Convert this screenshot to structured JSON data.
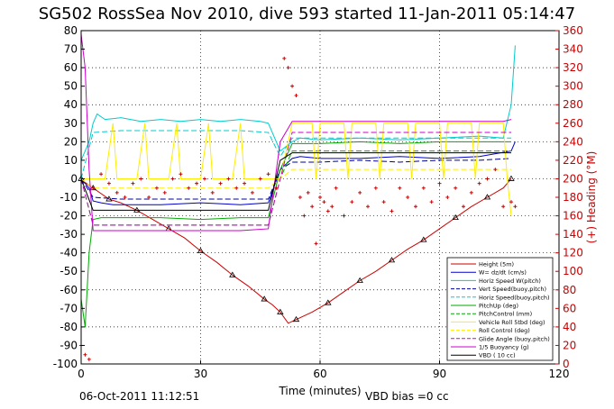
{
  "chart_data": {
    "type": "line",
    "title": "SG502 RossSea Nov 2010, dive 593 started 11-Jan-2011 05:14:47",
    "xlabel": "Time (minutes)",
    "y2label": "(+) Heading (°M)",
    "footer_left": "06-Oct-2011 11:12:51",
    "footer_right": "VBD bias =0 cc",
    "xlim": [
      0,
      120
    ],
    "ylim": [
      -100,
      80
    ],
    "y2lim": [
      0,
      360
    ],
    "x_ticks": [
      0,
      30,
      60,
      90,
      120
    ],
    "y_ticks": [
      -100,
      -90,
      -80,
      -70,
      -60,
      -50,
      -40,
      -30,
      -20,
      -10,
      0,
      10,
      20,
      30,
      40,
      50,
      60,
      70,
      80
    ],
    "y2_ticks": [
      0,
      20,
      40,
      60,
      80,
      100,
      120,
      140,
      160,
      180,
      200,
      220,
      240,
      260,
      280,
      300,
      320,
      340,
      360
    ],
    "x_tick_labels": [
      "0",
      "30",
      "60",
      "90",
      "120"
    ],
    "y_tick_labels": [
      "-100",
      "-90",
      "-80",
      "-70",
      "-60",
      "-50",
      "-40",
      "-30",
      "-20",
      "-10",
      "0",
      "10",
      "20",
      "30",
      "40",
      "50",
      "60",
      "70",
      "80"
    ],
    "y2_tick_labels": [
      "0",
      "20",
      "40",
      "60",
      "80",
      "100",
      "120",
      "140",
      "160",
      "180",
      "200",
      "220",
      "240",
      "260",
      "280",
      "300",
      "320",
      "340",
      "360"
    ],
    "grid": true,
    "legend_position": "bottom-right",
    "legend_labels": [
      "Height (5m)",
      "W= dz/dt (cm/s)",
      "Horiz Speed W(pitch)",
      "Vert Speed(buoy,pitch)",
      "Horiz Speed(buoy,pitch)",
      "PitchUp (deg)",
      "PitchControl (mm)",
      "Vehicle Roll 5tbd (deg)",
      "Roll Control (deg)",
      "Glide Angle (buoy,pitch)",
      "1/5 Buoyancy (g)",
      "VBD ( 10 cc)"
    ],
    "series": [
      {
        "name": "Height (5m)",
        "color": "#cc0000",
        "style": "solid-triangles",
        "x": [
          0,
          1,
          3,
          5,
          7,
          10,
          14,
          18,
          22,
          26,
          30,
          34,
          38,
          42,
          46,
          48,
          50,
          52,
          54,
          58,
          62,
          66,
          70,
          74,
          78,
          82,
          86,
          90,
          94,
          98,
          102,
          106,
          108
        ],
        "y": [
          0,
          -2,
          -5,
          -8,
          -11,
          -13,
          -17,
          -22,
          -27,
          -32,
          -39,
          -45,
          -52,
          -58,
          -65,
          -68,
          -72,
          -78,
          -76,
          -72,
          -67,
          -61,
          -55,
          -50,
          -44,
          -38,
          -33,
          -27,
          -21,
          -15,
          -10,
          -5,
          0
        ]
      },
      {
        "name": "W= dz/dt (cm/s)",
        "color": "#0000cc",
        "style": "solid",
        "x": [
          0,
          2,
          3,
          5,
          8,
          12,
          20,
          30,
          40,
          47,
          50,
          53,
          55,
          60,
          70,
          80,
          90,
          100,
          108,
          109
        ],
        "y": [
          0,
          -5,
          -12,
          -13,
          -14,
          -14,
          -14,
          -13,
          -14,
          -13,
          5,
          11,
          12,
          11,
          11,
          12,
          11,
          12,
          15,
          20
        ]
      },
      {
        "name": "Horiz Speed W(pitch)",
        "color": "#00cccc",
        "style": "solid",
        "x": [
          0,
          2,
          3,
          4,
          6,
          10,
          15,
          20,
          25,
          30,
          35,
          40,
          45,
          47,
          50,
          53,
          55,
          60,
          70,
          80,
          90,
          100,
          106,
          108,
          109
        ],
        "y": [
          10,
          20,
          30,
          35,
          32,
          33,
          31,
          32,
          31,
          32,
          31,
          32,
          31,
          30,
          15,
          20,
          22,
          21,
          22,
          21,
          22,
          23,
          22,
          40,
          72
        ]
      },
      {
        "name": "Vert Speed(buoy,pitch)",
        "color": "#000099",
        "style": "dashed",
        "x": [
          0,
          3,
          10,
          20,
          30,
          40,
          47,
          50,
          53,
          60,
          70,
          80,
          90,
          100,
          108
        ],
        "y": [
          0,
          -10,
          -11,
          -11,
          -11,
          -11,
          -11,
          5,
          9,
          9,
          10,
          9,
          10,
          10,
          11
        ]
      },
      {
        "name": "Horiz Speed(buoy,pitch)",
        "color": "#00cccc",
        "style": "dashed",
        "x": [
          0,
          3,
          10,
          20,
          30,
          40,
          47,
          50,
          53,
          60,
          70,
          80,
          90,
          100,
          108
        ],
        "y": [
          0,
          25,
          26,
          26,
          26,
          26,
          25,
          12,
          22,
          22,
          22,
          22,
          22,
          22,
          22
        ]
      },
      {
        "name": "PitchUp (deg)",
        "color": "#00aa00",
        "style": "solid",
        "x": [
          0,
          1,
          2,
          3,
          5,
          10,
          20,
          30,
          40,
          47,
          50,
          53,
          60,
          70,
          80,
          90,
          100,
          108
        ],
        "y": [
          -65,
          -80,
          -40,
          -22,
          -21,
          -21,
          -21,
          -22,
          -21,
          -21,
          5,
          19,
          19,
          20,
          19,
          20,
          20,
          20
        ]
      },
      {
        "name": "PitchControl (mm)",
        "color": "#00aa00",
        "style": "dashed",
        "x": [
          0,
          3,
          10,
          20,
          30,
          40,
          47,
          50,
          53,
          60,
          70,
          80,
          90,
          100,
          108
        ],
        "y": [
          0,
          -25,
          -25,
          -25,
          -25,
          -25,
          -25,
          0,
          15,
          15,
          15,
          15,
          15,
          15,
          15
        ]
      },
      {
        "name": "Vehicle Roll 5tbd (deg)",
        "color": "#ffee00",
        "style": "solid",
        "x": [
          0,
          3,
          6,
          8,
          9,
          10,
          14,
          16,
          17,
          18,
          22,
          24,
          25,
          26,
          30,
          32,
          33,
          34,
          38,
          40,
          41,
          42,
          46,
          47,
          50,
          53,
          56,
          58,
          59,
          60,
          66,
          67,
          68,
          74,
          75,
          76,
          82,
          83,
          84,
          90,
          91,
          92,
          98,
          99,
          100,
          106,
          107,
          108
        ],
        "y": [
          0,
          0,
          0,
          30,
          0,
          0,
          0,
          30,
          0,
          0,
          0,
          30,
          0,
          0,
          0,
          30,
          0,
          0,
          0,
          30,
          0,
          0,
          0,
          0,
          0,
          30,
          30,
          30,
          0,
          30,
          30,
          0,
          30,
          30,
          0,
          30,
          30,
          0,
          30,
          30,
          0,
          30,
          30,
          0,
          30,
          30,
          0,
          -20
        ]
      },
      {
        "name": "Roll Control (deg)",
        "color": "#ffee00",
        "style": "dashed",
        "x": [
          0,
          3,
          10,
          20,
          30,
          40,
          47,
          50,
          53,
          60,
          70,
          80,
          90,
          100,
          108
        ],
        "y": [
          0,
          -5,
          -5,
          -5,
          -5,
          -5,
          -5,
          0,
          5,
          5,
          5,
          5,
          5,
          5,
          5
        ]
      },
      {
        "name": "Glide Angle (buoy,pitch)",
        "color": "#cc00cc",
        "style": "dashed",
        "x": [
          0,
          3,
          10,
          20,
          30,
          40,
          47,
          50,
          53,
          60,
          70,
          80,
          90,
          100,
          108
        ],
        "y": [
          0,
          -25,
          -25,
          -25,
          -25,
          -25,
          -25,
          0,
          25,
          25,
          25,
          25,
          25,
          25,
          25
        ]
      },
      {
        "name": "1/5 Buoyancy (g)",
        "color": "#cc00cc",
        "style": "solid",
        "x": [
          0,
          1,
          2,
          3,
          10,
          20,
          30,
          40,
          47,
          50,
          53,
          60,
          70,
          80,
          90,
          100,
          106,
          108
        ],
        "y": [
          78,
          60,
          5,
          -28,
          -28,
          -28,
          -28,
          -28,
          -27,
          20,
          31,
          31,
          31,
          31,
          31,
          31,
          31,
          32
        ]
      },
      {
        "name": "VBD ( 10 cc)",
        "color": "#000000",
        "style": "solid",
        "x": [
          0,
          3,
          10,
          20,
          30,
          40,
          47,
          50,
          53,
          60,
          70,
          80,
          90,
          100,
          108
        ],
        "y": [
          0,
          -17,
          -17,
          -17,
          -17,
          -17,
          -17,
          10,
          14,
          14,
          14,
          14,
          14,
          14,
          14
        ]
      }
    ],
    "heading_series": {
      "name": "Heading",
      "axis": "right",
      "color": "#cc0000",
      "style": "plus-markers",
      "x": [
        0,
        1,
        2,
        3,
        5,
        7,
        9,
        11,
        13,
        15,
        17,
        19,
        21,
        23,
        25,
        27,
        29,
        31,
        33,
        35,
        37,
        39,
        41,
        43,
        45,
        47,
        49,
        51,
        52,
        53,
        54,
        55,
        56,
        57,
        58,
        59,
        60,
        61,
        62,
        63,
        64,
        66,
        68,
        70,
        72,
        74,
        76,
        78,
        80,
        82,
        84,
        86,
        88,
        90,
        92,
        94,
        96,
        98,
        100,
        102,
        104,
        106,
        108,
        109
      ],
      "y": [
        20,
        10,
        5,
        190,
        205,
        195,
        185,
        180,
        195,
        200,
        180,
        190,
        185,
        200,
        205,
        190,
        195,
        200,
        185,
        195,
        200,
        190,
        195,
        185,
        200,
        205,
        190,
        330,
        320,
        300,
        290,
        180,
        160,
        185,
        170,
        130,
        180,
        175,
        165,
        170,
        190,
        160,
        175,
        185,
        170,
        190,
        175,
        165,
        190,
        180,
        170,
        190,
        175,
        195,
        180,
        190,
        170,
        185,
        195,
        200,
        210,
        170,
        175,
        170
      ]
    }
  }
}
